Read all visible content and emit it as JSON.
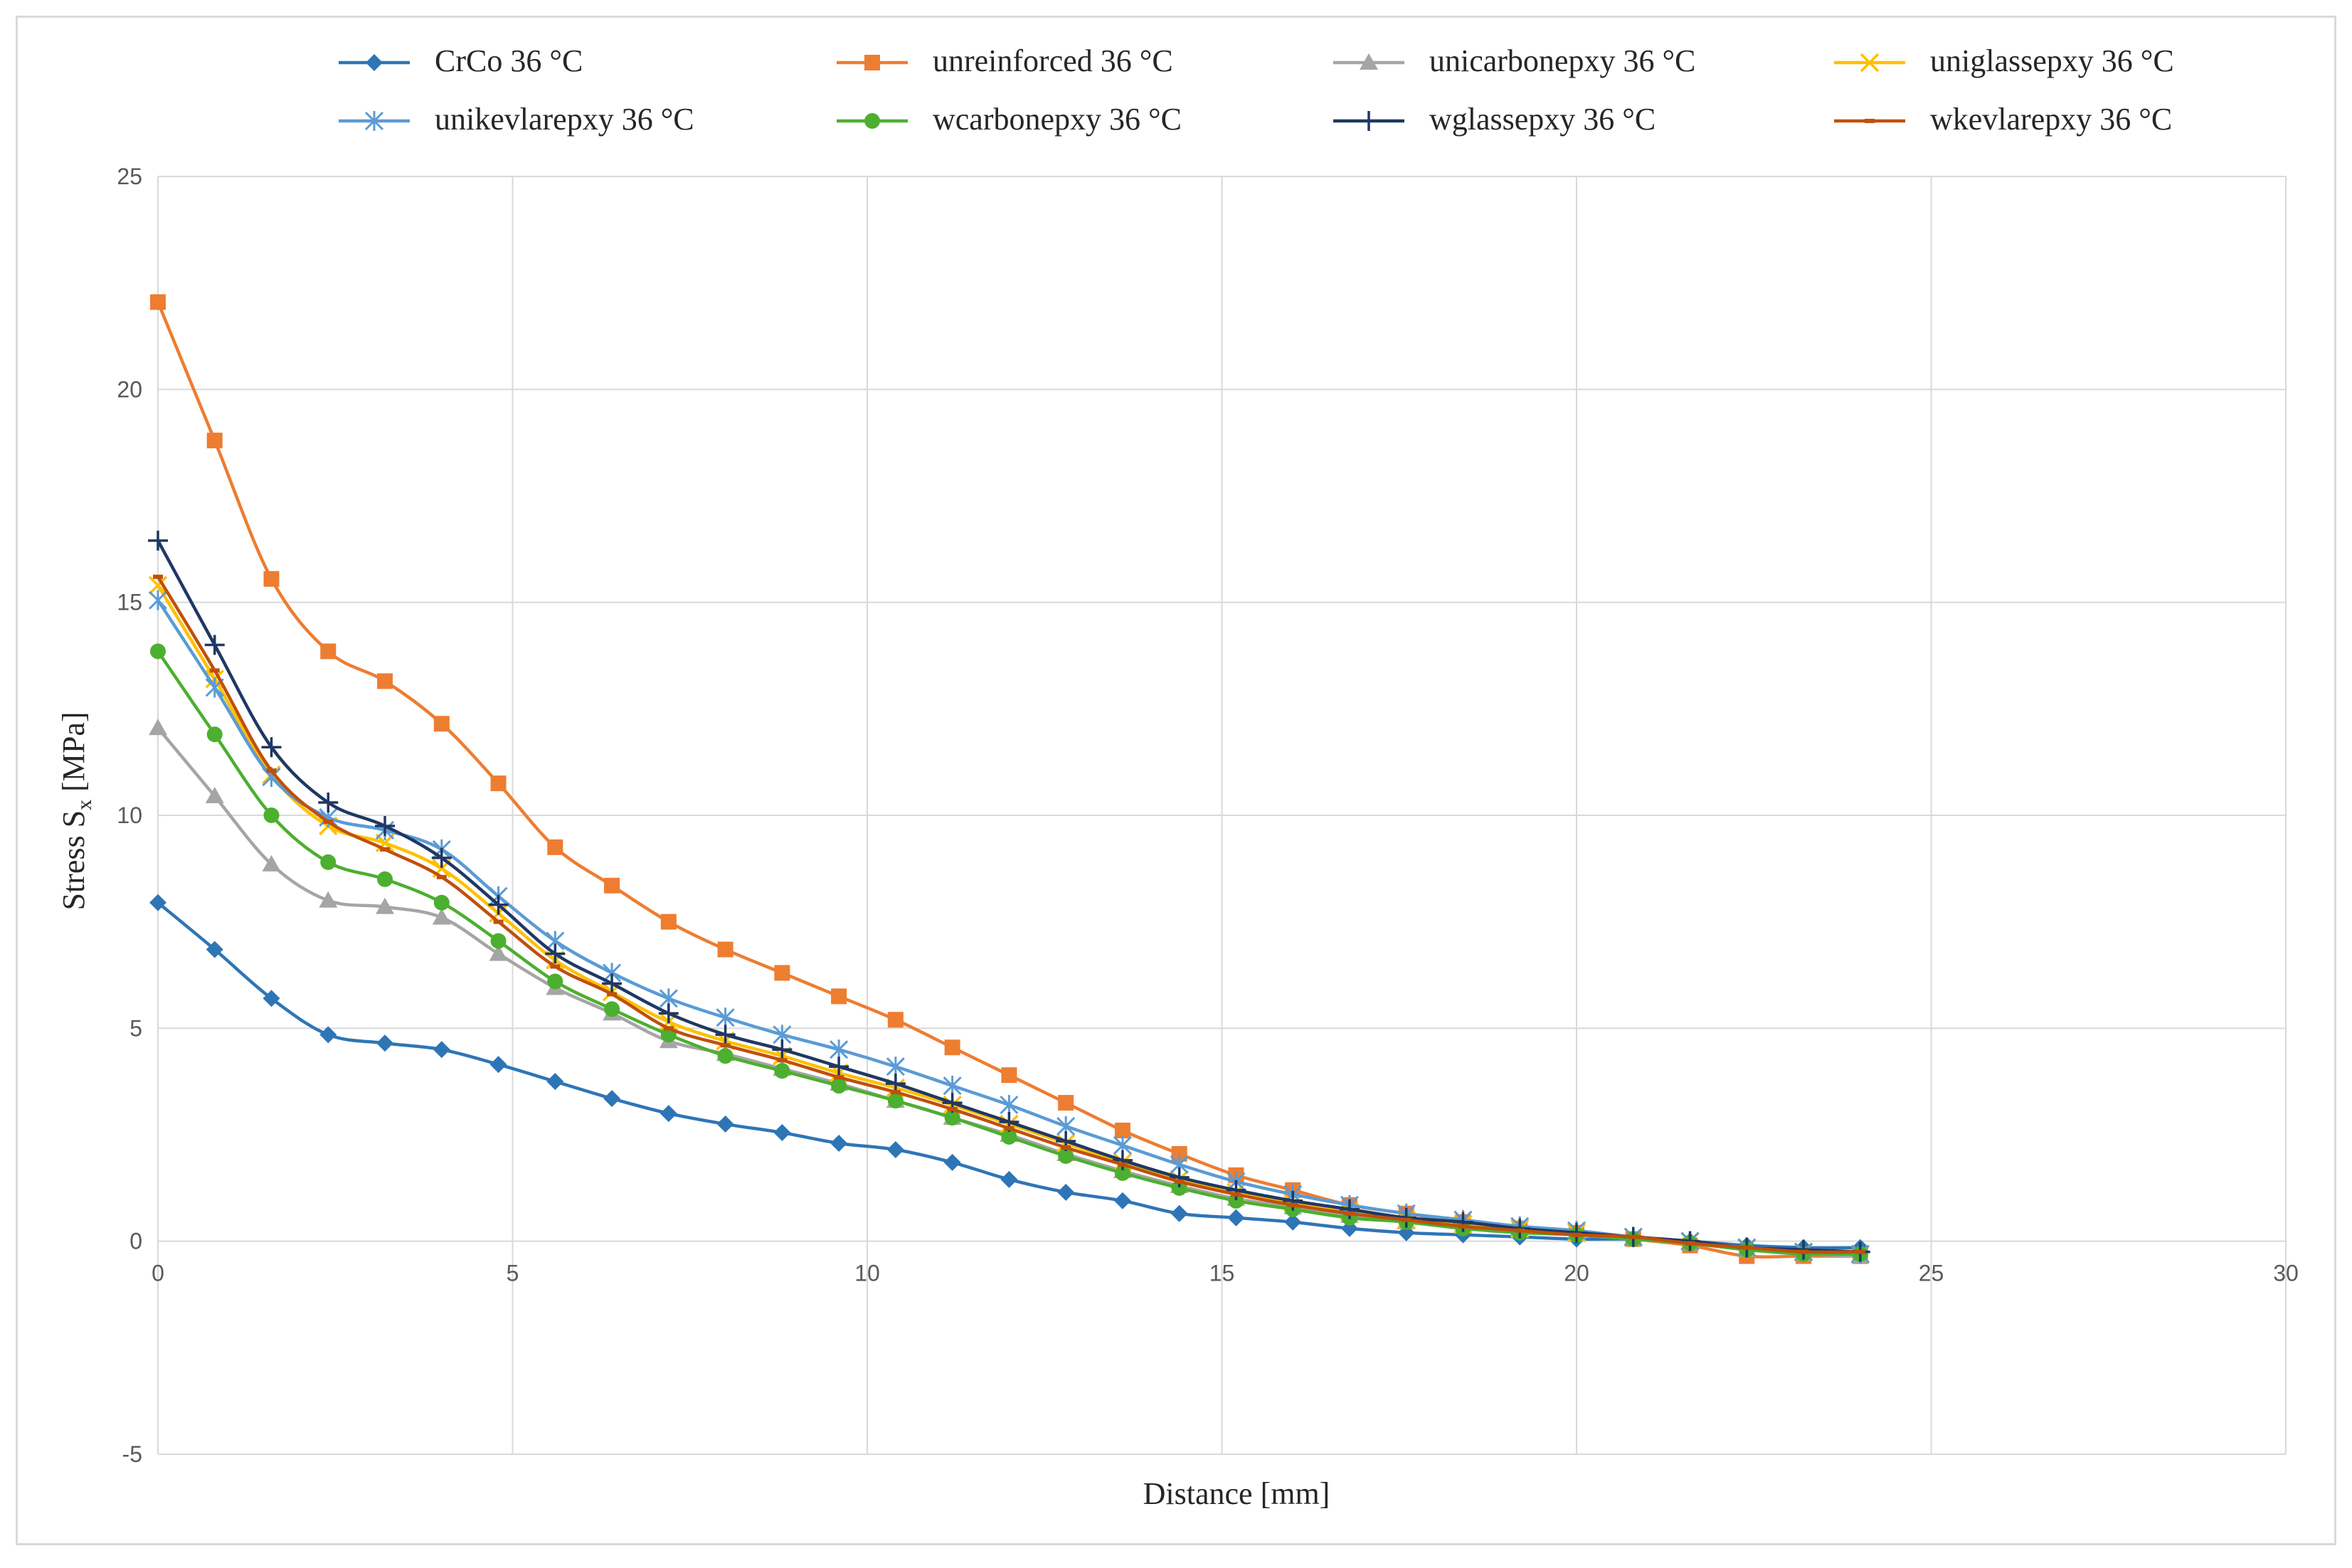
{
  "chart_data": {
    "type": "line",
    "title": "",
    "xlabel": "Distance [mm]",
    "ylabel_main": "Stress S",
    "ylabel_sub": "x",
    "ylabel_unit": " [MPa]",
    "xlim": [
      0,
      30
    ],
    "ylim": [
      -5,
      25
    ],
    "xticks": [
      0,
      5,
      10,
      15,
      20,
      25,
      30
    ],
    "yticks": [
      -5,
      0,
      5,
      10,
      15,
      20,
      25
    ],
    "grid": true,
    "legend_position": "top",
    "x": [
      0,
      0.8,
      1.6,
      2.4,
      3.2,
      4.0,
      4.8,
      5.6,
      6.4,
      7.2,
      8.0,
      8.8,
      9.6,
      10.4,
      11.2,
      12.0,
      12.8,
      13.6,
      14.4,
      15.2,
      16.0,
      16.8,
      17.6,
      18.4,
      19.2,
      20.0,
      20.8,
      21.6,
      22.4,
      23.2,
      24.0
    ],
    "series": [
      {
        "name": "CrCo 36 °C",
        "color": "#2e75b6",
        "marker": "diamond",
        "values": [
          7.95,
          6.85,
          5.7,
          4.85,
          4.65,
          4.5,
          4.15,
          3.75,
          3.35,
          3.0,
          2.75,
          2.55,
          2.3,
          2.15,
          1.85,
          1.45,
          1.15,
          0.95,
          0.65,
          0.55,
          0.45,
          0.3,
          0.2,
          0.15,
          0.1,
          0.05,
          0.05,
          0.0,
          -0.1,
          -0.15,
          -0.15
        ]
      },
      {
        "name": "unreinforced 36 °C",
        "color": "#ed7d31",
        "marker": "square",
        "values": [
          22.05,
          18.8,
          15.55,
          13.85,
          13.15,
          12.15,
          10.75,
          9.25,
          8.35,
          7.5,
          6.85,
          6.3,
          5.75,
          5.2,
          4.55,
          3.9,
          3.25,
          2.6,
          2.05,
          1.55,
          1.2,
          0.85,
          0.65,
          0.45,
          0.3,
          0.2,
          0.05,
          -0.1,
          -0.35,
          -0.35,
          -0.35
        ]
      },
      {
        "name": "unicarbonepxy 36 °C",
        "color": "#a5a5a5",
        "marker": "triangle",
        "values": [
          12.05,
          10.45,
          8.85,
          8.0,
          7.85,
          7.6,
          6.75,
          5.95,
          5.35,
          4.7,
          4.4,
          4.05,
          3.7,
          3.3,
          2.9,
          2.5,
          2.05,
          1.65,
          1.3,
          1.0,
          0.8,
          0.6,
          0.45,
          0.35,
          0.25,
          0.15,
          0.05,
          -0.05,
          -0.2,
          -0.3,
          -0.35
        ]
      },
      {
        "name": "uniglassepxy 36 °C",
        "color": "#ffc000",
        "marker": "x",
        "values": [
          15.4,
          13.2,
          10.95,
          9.75,
          9.35,
          8.75,
          7.7,
          6.6,
          5.85,
          5.15,
          4.7,
          4.35,
          3.95,
          3.6,
          3.2,
          2.75,
          2.3,
          1.85,
          1.45,
          1.15,
          0.9,
          0.7,
          0.5,
          0.4,
          0.3,
          0.2,
          0.1,
          0.0,
          -0.15,
          -0.25,
          -0.3
        ]
      },
      {
        "name": "unikevlarepxy 36 °C",
        "color": "#5b9bd5",
        "marker": "star",
        "values": [
          15.05,
          13.0,
          10.9,
          9.95,
          9.65,
          9.2,
          8.1,
          7.05,
          6.3,
          5.7,
          5.25,
          4.85,
          4.5,
          4.1,
          3.65,
          3.2,
          2.7,
          2.25,
          1.8,
          1.4,
          1.1,
          0.85,
          0.65,
          0.5,
          0.35,
          0.25,
          0.1,
          0.0,
          -0.15,
          -0.25,
          -0.3
        ]
      },
      {
        "name": "wcarbonepxy 36 °C",
        "color": "#4caf2f",
        "marker": "circle",
        "values": [
          13.85,
          11.9,
          10.0,
          8.9,
          8.5,
          7.95,
          7.05,
          6.1,
          5.45,
          4.85,
          4.35,
          4.0,
          3.65,
          3.3,
          2.9,
          2.45,
          2.0,
          1.6,
          1.25,
          0.95,
          0.75,
          0.55,
          0.45,
          0.3,
          0.2,
          0.15,
          0.05,
          -0.05,
          -0.2,
          -0.3,
          -0.3
        ]
      },
      {
        "name": "wglassepxy 36 °C",
        "color": "#1f3864",
        "marker": "plus",
        "values": [
          16.45,
          14.0,
          11.6,
          10.3,
          9.75,
          9.0,
          7.9,
          6.75,
          6.05,
          5.35,
          4.85,
          4.5,
          4.1,
          3.7,
          3.25,
          2.8,
          2.35,
          1.9,
          1.5,
          1.2,
          0.95,
          0.75,
          0.55,
          0.45,
          0.3,
          0.2,
          0.1,
          0.0,
          -0.15,
          -0.2,
          -0.25
        ]
      },
      {
        "name": "wkevlarepxy 36 °C",
        "color": "#c0500a",
        "marker": "dash",
        "values": [
          15.6,
          13.4,
          11.05,
          9.85,
          9.2,
          8.55,
          7.5,
          6.45,
          5.8,
          5.0,
          4.6,
          4.25,
          3.85,
          3.5,
          3.1,
          2.65,
          2.2,
          1.8,
          1.4,
          1.1,
          0.85,
          0.65,
          0.5,
          0.35,
          0.25,
          0.15,
          0.1,
          -0.05,
          -0.15,
          -0.25,
          -0.25
        ]
      }
    ]
  }
}
